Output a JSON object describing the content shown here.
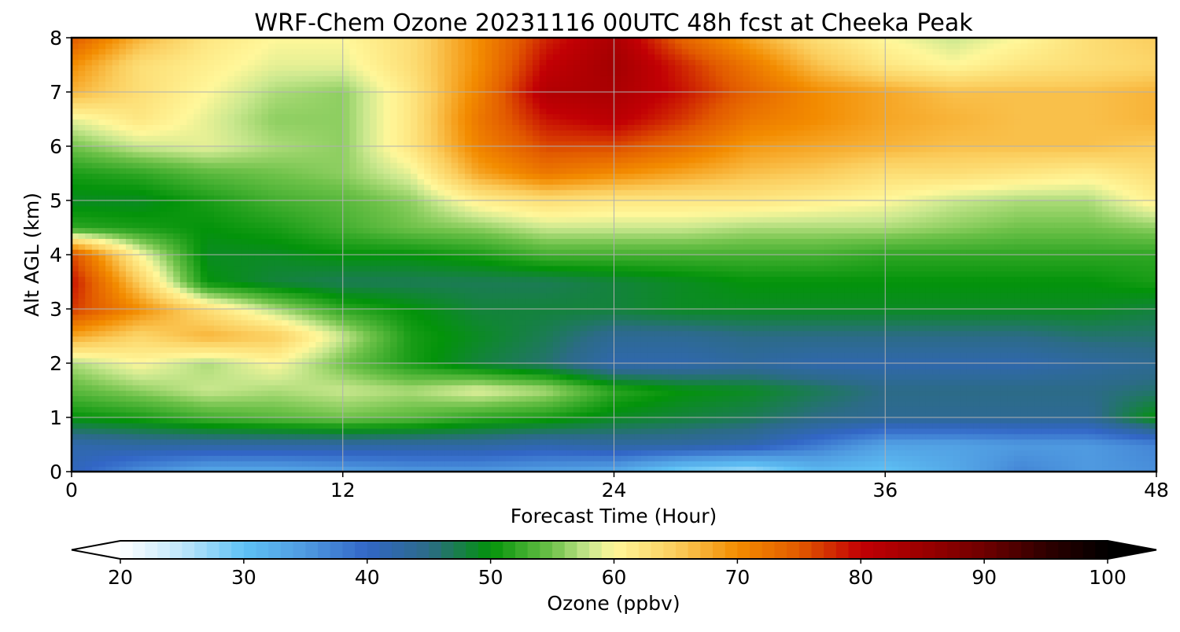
{
  "chart_data": {
    "type": "heatmap",
    "title": "WRF-Chem Ozone  20231116 00UTC 48h fcst at Cheeka Peak",
    "xlabel": "Forecast Time (Hour)",
    "ylabel": "Alt AGL (km)",
    "xlim": [
      0,
      48
    ],
    "ylim": [
      0,
      8
    ],
    "xticks": [
      0,
      12,
      24,
      36,
      48
    ],
    "yticks": [
      0,
      1,
      2,
      3,
      4,
      5,
      6,
      7,
      8
    ],
    "grid": true,
    "colorbar": {
      "label": "Ozone  (ppbv)",
      "min": 20,
      "max": 100,
      "ticks": [
        20,
        30,
        40,
        50,
        60,
        70,
        80,
        90,
        100
      ],
      "extend": "both",
      "under_color": "#ffffff",
      "over_color": "#000000",
      "stops": [
        [
          20,
          "#ffffff"
        ],
        [
          25,
          "#bfe7fb"
        ],
        [
          30,
          "#5fc2f5"
        ],
        [
          35,
          "#4f9ae0"
        ],
        [
          40,
          "#3266c6"
        ],
        [
          45,
          "#2c6b87"
        ],
        [
          50,
          "#03930a"
        ],
        [
          55,
          "#6fc24a"
        ],
        [
          58,
          "#cbe88f"
        ],
        [
          60,
          "#fff79a"
        ],
        [
          65,
          "#fbcd5d"
        ],
        [
          70,
          "#f38c00"
        ],
        [
          75,
          "#e25a00"
        ],
        [
          80,
          "#c20004"
        ],
        [
          85,
          "#9b0000"
        ],
        [
          90,
          "#6e0000"
        ],
        [
          95,
          "#2f0000"
        ],
        [
          100,
          "#000000"
        ]
      ]
    },
    "x": [
      0,
      3,
      6,
      9,
      12,
      15,
      18,
      21,
      24,
      27,
      30,
      33,
      36,
      39,
      42,
      45,
      48
    ],
    "y": [
      0,
      0.5,
      1,
      1.5,
      2,
      2.5,
      3,
      3.5,
      4,
      4.5,
      5,
      5.5,
      6,
      6.5,
      7,
      7.5,
      8
    ],
    "z": [
      [
        41,
        36,
        33,
        33,
        34,
        35,
        35,
        34,
        33,
        28,
        26,
        31,
        30,
        33,
        37,
        35,
        36
      ],
      [
        42,
        43,
        43,
        43,
        43,
        43,
        43,
        42,
        43,
        43,
        42,
        38,
        34,
        34,
        35,
        35,
        37
      ],
      [
        50,
        51,
        53,
        54,
        55,
        54,
        52,
        51,
        49,
        48,
        47,
        45,
        44,
        44,
        44,
        44,
        50
      ],
      [
        54,
        56,
        58,
        57,
        58,
        57,
        59,
        57,
        52,
        50,
        49,
        47,
        45,
        45,
        45,
        45,
        46
      ],
      [
        57,
        60,
        57,
        60,
        55,
        51,
        48,
        46,
        42,
        42,
        43,
        42,
        42,
        42,
        42,
        43,
        44
      ],
      [
        68,
        64,
        67,
        65,
        58,
        51,
        49,
        47,
        44,
        44,
        45,
        45,
        45,
        45,
        45,
        46,
        46
      ],
      [
        77,
        70,
        63,
        57,
        52,
        50,
        48,
        48,
        48,
        49,
        49,
        49,
        49,
        49,
        49,
        49,
        48
      ],
      [
        79,
        65,
        50,
        48,
        47,
        47,
        47,
        47,
        48,
        49,
        50,
        50,
        50,
        50,
        50,
        50,
        51
      ],
      [
        76,
        60,
        49,
        49,
        50,
        50,
        51,
        53,
        53,
        53,
        53,
        53,
        52,
        52,
        52,
        52,
        52
      ],
      [
        52,
        51,
        50,
        51,
        53,
        55,
        56,
        58,
        58,
        58,
        57,
        57,
        57,
        56,
        55,
        55,
        56
      ],
      [
        49,
        49,
        51,
        53,
        54,
        56,
        61,
        63,
        62,
        62,
        62,
        61,
        60,
        58,
        57,
        57,
        61
      ],
      [
        51,
        52,
        54,
        55,
        56,
        59,
        68,
        72,
        70,
        68,
        66,
        65,
        63,
        63,
        62,
        61,
        63
      ],
      [
        55,
        58,
        59,
        57,
        56,
        62,
        71,
        76,
        76,
        73,
        69,
        68,
        67,
        66,
        66,
        66,
        65
      ],
      [
        59,
        62,
        59,
        56,
        56,
        62,
        72,
        79,
        81,
        77,
        72,
        70,
        68,
        67,
        66,
        66,
        67
      ],
      [
        67,
        63,
        60,
        57,
        56,
        62,
        71,
        82,
        83,
        79,
        74,
        70,
        68,
        66,
        66,
        66,
        67
      ],
      [
        70,
        63,
        61,
        59,
        59,
        63,
        70,
        80,
        84,
        78,
        72,
        66,
        62,
        60,
        62,
        63,
        64
      ],
      [
        75,
        67,
        62,
        60,
        60,
        63,
        70,
        78,
        83,
        74,
        68,
        63,
        60,
        58,
        60,
        63,
        65
      ]
    ]
  }
}
